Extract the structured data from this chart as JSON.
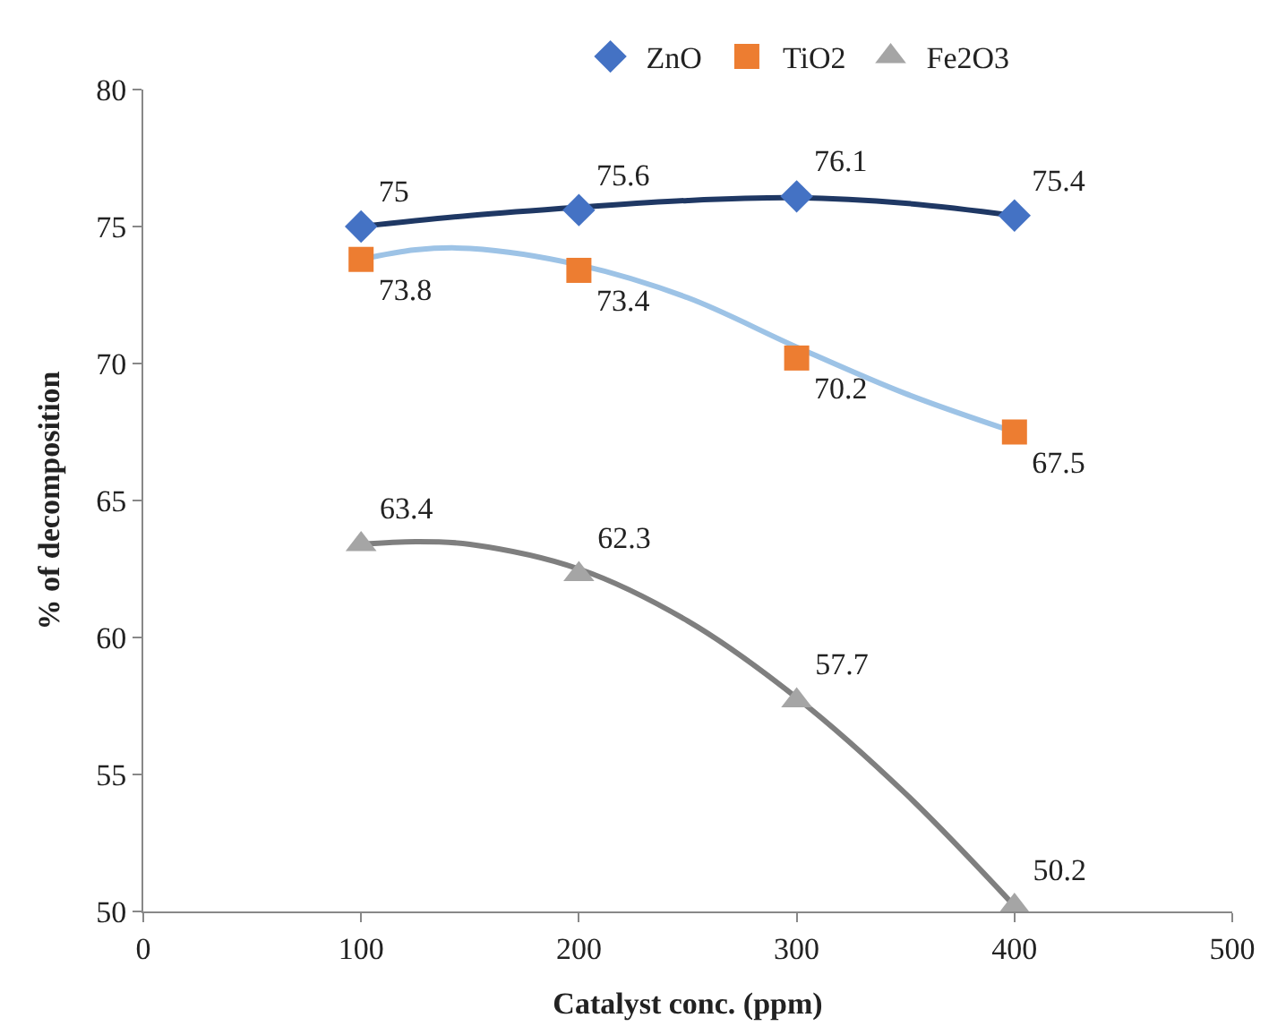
{
  "chart_data": {
    "type": "scatter",
    "xlabel": "Catalyst conc. (ppm)",
    "ylabel": "% of decomposition",
    "x": [
      100,
      200,
      300,
      400
    ],
    "xlim": [
      0,
      500
    ],
    "xticks": [
      0,
      100,
      200,
      300,
      400,
      500
    ],
    "ylim": [
      50,
      80
    ],
    "yticks": [
      50,
      55,
      60,
      65,
      70,
      75,
      80
    ],
    "legend": "top",
    "series": [
      {
        "name": "ZnO",
        "color": "#4472c4",
        "marker": "diamond",
        "values": [
          75,
          75.6,
          76.1,
          75.4
        ],
        "value_labels": [
          "75",
          "75.6",
          "76.1",
          "75.4"
        ]
      },
      {
        "name": "TiO2",
        "color": "#ed7d31",
        "marker": "square",
        "values": [
          73.8,
          73.4,
          70.2,
          67.5
        ],
        "value_labels": [
          "73.8",
          "73.4",
          "70.2",
          "67.5"
        ]
      },
      {
        "name": "Fe2O3",
        "color": "#a5a5a5",
        "marker": "triangle",
        "values": [
          63.4,
          62.3,
          57.7,
          50.2
        ],
        "value_labels": [
          "63.4",
          "62.3",
          "57.7",
          "50.2"
        ]
      },
      {
        "type": "line",
        "color": "#1f3864",
        "marker": "none",
        "x": [
          100,
          150,
          200,
          250,
          300,
          350,
          400
        ],
        "values": [
          75.0,
          75.4,
          75.7,
          75.95,
          76.05,
          75.85,
          75.4
        ]
      },
      {
        "type": "line",
        "color": "#9dc3e6",
        "marker": "none",
        "x": [
          100,
          125,
          150,
          200,
          250,
          300,
          350,
          400
        ],
        "values": [
          73.8,
          74.15,
          74.2,
          73.6,
          72.4,
          70.6,
          68.9,
          67.5
        ]
      },
      {
        "type": "line",
        "color": "#7f7f7f",
        "marker": "none",
        "x": [
          100,
          125,
          150,
          200,
          250,
          300,
          350,
          400
        ],
        "values": [
          63.4,
          63.5,
          63.4,
          62.5,
          60.6,
          57.8,
          54.3,
          50.2
        ]
      }
    ]
  }
}
